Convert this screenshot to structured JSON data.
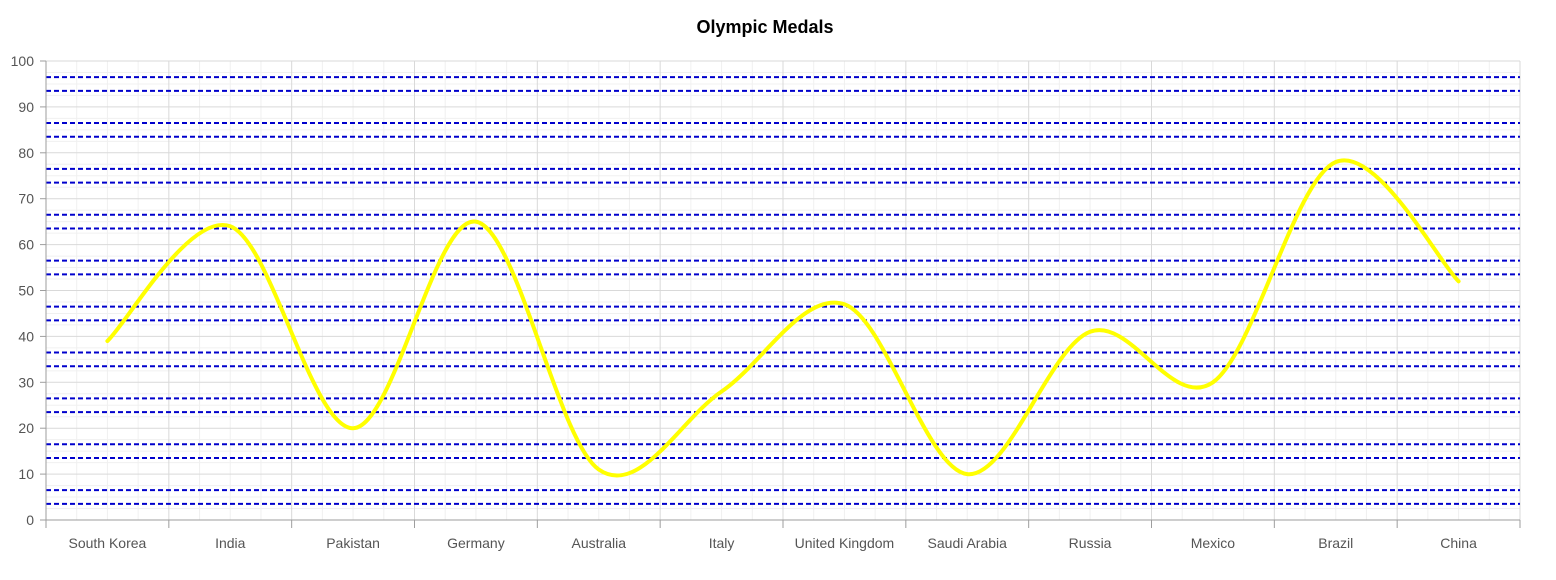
{
  "chart_data": {
    "type": "line",
    "title": "Olympic Medals",
    "xlabel": "",
    "ylabel": "",
    "categories": [
      "South Korea",
      "India",
      "Pakistan",
      "Germany",
      "Australia",
      "Italy",
      "United Kingdom",
      "Saudi Arabia",
      "Russia",
      "Mexico",
      "Brazil",
      "China"
    ],
    "series": [
      {
        "values": [
          39,
          64,
          20,
          65,
          11,
          28,
          47,
          10,
          41,
          30,
          78,
          52
        ],
        "color": "#ffff00",
        "smooth": true
      }
    ],
    "ylim": [
      0,
      100
    ],
    "yticks": [
      0,
      10,
      20,
      30,
      40,
      50,
      60,
      70,
      80,
      90,
      100
    ],
    "grid": true,
    "legend": "none",
    "striplines": {
      "values": [
        3.5,
        6.5,
        13.5,
        16.5,
        23.5,
        26.5,
        33.5,
        36.5,
        43.5,
        46.5,
        53.5,
        56.5,
        63.5,
        66.5,
        73.5,
        76.5,
        83.5,
        86.5,
        93.5,
        96.5
      ],
      "color": "#0000cc",
      "style": "dashed"
    }
  }
}
